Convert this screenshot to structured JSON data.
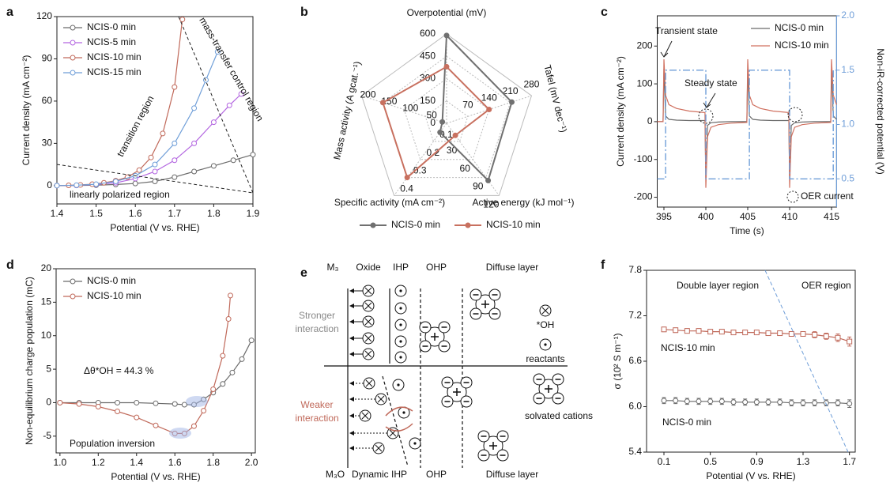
{
  "chart_data": [
    {
      "panel": "a",
      "type": "line",
      "xlabel": "Potential (V vs. RHE)",
      "ylabel": "Current density (mA cm⁻²)",
      "xlim": [
        1.4,
        1.9
      ],
      "ylim": [
        -13,
        120
      ],
      "xticks": [
        1.4,
        1.5,
        1.6,
        1.7,
        1.8,
        1.9
      ],
      "yticks": [
        0,
        30,
        60,
        90,
        120
      ],
      "legend": "upper left",
      "annotations": [
        "transition region",
        "mass-transfer control region",
        "linearly polarized region"
      ],
      "series": [
        {
          "name": "NCIS-0 min",
          "color": "#6b6b6b",
          "marker": "circle",
          "x": [
            1.4,
            1.45,
            1.5,
            1.55,
            1.6,
            1.65,
            1.7,
            1.75,
            1.8,
            1.85,
            1.9
          ],
          "values": [
            0,
            0.1,
            0.3,
            0.8,
            1.5,
            3,
            6,
            10,
            14,
            18,
            22
          ]
        },
        {
          "name": "NCIS-5 min",
          "color": "#b366e0",
          "marker": "circle",
          "x": [
            1.4,
            1.45,
            1.5,
            1.55,
            1.6,
            1.65,
            1.7,
            1.75,
            1.8,
            1.84,
            1.87
          ],
          "values": [
            0,
            0.2,
            0.8,
            2,
            5,
            10,
            18,
            30,
            45,
            57,
            65
          ]
        },
        {
          "name": "NCIS-10 min",
          "color": "#c0695a",
          "marker": "circle",
          "x": [
            1.4,
            1.43,
            1.46,
            1.49,
            1.52,
            1.55,
            1.58,
            1.61,
            1.64,
            1.67,
            1.7,
            1.72
          ],
          "values": [
            0,
            0.2,
            0.5,
            1,
            2,
            3.5,
            6,
            11,
            20,
            37,
            70,
            118
          ]
        },
        {
          "name": "NCIS-15 min",
          "color": "#6f9ed8",
          "marker": "circle",
          "x": [
            1.4,
            1.45,
            1.5,
            1.55,
            1.6,
            1.65,
            1.7,
            1.75,
            1.78,
            1.81
          ],
          "values": [
            0,
            0.3,
            1,
            3,
            7,
            15,
            30,
            55,
            75,
            95
          ]
        }
      ]
    },
    {
      "panel": "b",
      "type": "radar",
      "legend": "bottom",
      "axes": [
        {
          "label": "Overpotential (mV)",
          "range": [
            0,
            600
          ],
          "ticks": [
            0,
            150,
            300,
            450,
            600
          ]
        },
        {
          "label": "Tafel (mV dec⁻¹)",
          "range": [
            0,
            280
          ],
          "ticks": [
            70,
            140,
            210,
            280
          ]
        },
        {
          "label": "Active energy (kJ mol⁻¹)",
          "range": [
            0,
            120
          ],
          "ticks": [
            30,
            60,
            90,
            120
          ]
        },
        {
          "label": "Specific activity (mA cm⁻²)",
          "range": [
            0,
            0.4
          ],
          "ticks": [
            0.1,
            0.2,
            0.3,
            0.4
          ]
        },
        {
          "label": "Mass activity (A gcat.⁻¹)",
          "range": [
            0,
            200
          ],
          "ticks": [
            50,
            100,
            150,
            200
          ]
        }
      ],
      "series": [
        {
          "name": "NCIS-0 min",
          "color": "#707070",
          "values": [
            590,
            215,
            95,
            0.05,
            10
          ]
        },
        {
          "name": "NCIS-10 min",
          "color": "#c8705f",
          "values": [
            380,
            140,
            20,
            0.3,
            150
          ]
        }
      ]
    },
    {
      "panel": "c",
      "type": "line",
      "xlabel": "Time (s)",
      "ylabel": "Current density (mA cm⁻²)",
      "y2label": "Non-iR-corrected potential (V)",
      "xlim": [
        394.2,
        415.6
      ],
      "ylim": [
        -226,
        280
      ],
      "y2lim": [
        0.24,
        2.0
      ],
      "xticks": [
        395,
        400,
        405,
        410,
        415
      ],
      "yticks": [
        -200,
        -100,
        0,
        100,
        200
      ],
      "y2ticks": [
        0.5,
        {
          "value": 1,
          "label": "1.0"
        },
        1.5,
        {
          "value": 2,
          "label": "2.0"
        }
      ],
      "legend": "upper right",
      "annotations": [
        "Transient state",
        "Steady state",
        "OER current"
      ],
      "x": [
        394.2,
        394.9,
        395.0,
        395.2,
        395.6,
        396.5,
        398,
        399.9,
        400.0,
        400.2,
        400.6,
        401.5,
        403,
        404.9,
        405.0,
        405.2,
        405.6,
        406.5,
        408,
        409.9,
        410.0,
        410.2,
        410.6,
        411.5,
        413,
        414.9,
        415.0,
        415.2,
        415.6
      ],
      "series": [
        {
          "name": "NCIS-0 min",
          "color": "#6b6b6b",
          "values": [
            0,
            0,
            140,
            15,
            6,
            4,
            3,
            3,
            -150,
            -10,
            -3,
            -1,
            0,
            0,
            140,
            15,
            6,
            4,
            3,
            3,
            -150,
            -10,
            -3,
            -1,
            0,
            0,
            140,
            15,
            6
          ]
        },
        {
          "name": "NCIS-10 min",
          "color": "#d0705f",
          "values": [
            0,
            0,
            165,
            70,
            45,
            35,
            28,
            24,
            -175,
            -40,
            -15,
            -8,
            -4,
            -2,
            165,
            70,
            45,
            35,
            28,
            24,
            -175,
            -40,
            -15,
            -8,
            -4,
            -2,
            165,
            70,
            45
          ]
        },
        {
          "color": "#6f9ed8",
          "dash": "dashdot",
          "axis": "y2",
          "x": [
            394.2,
            395.2,
            395.2,
            400,
            400,
            405.2,
            405.2,
            410,
            410,
            415.2,
            415.2,
            415.6
          ],
          "values": [
            0.5,
            0.5,
            1.5,
            1.5,
            0.5,
            0.5,
            1.5,
            1.5,
            0.5,
            0.5,
            1.5,
            1.5
          ]
        }
      ]
    },
    {
      "panel": "d",
      "type": "line",
      "xlabel": "Potential (V vs. RHE)",
      "ylabel": "Non-equilibrium charge population (mC)",
      "xlim": [
        0.98,
        2.02
      ],
      "ylim": [
        -7.5,
        20
      ],
      "xticks": [
        {
          "value": 1,
          "label": "1.0"
        },
        1.2,
        1.4,
        1.6,
        1.8,
        {
          "value": 2,
          "label": "2.0"
        }
      ],
      "yticks": [
        -5,
        0,
        5,
        10,
        15,
        20
      ],
      "legend": "upper left",
      "annotations": [
        "Δθ*OH = 44.3 %",
        "Population inversion"
      ],
      "series": [
        {
          "name": "NCIS-0 min",
          "color": "#6b6b6b",
          "marker": "circle",
          "x": [
            1.0,
            1.1,
            1.2,
            1.3,
            1.4,
            1.5,
            1.6,
            1.65,
            1.7,
            1.75,
            1.8,
            1.85,
            1.9,
            1.95,
            2.0
          ],
          "values": [
            0,
            0,
            0,
            0,
            0,
            -0.1,
            -0.2,
            -0.3,
            -0.3,
            0.5,
            1.5,
            2.8,
            4.5,
            6.5,
            9.3
          ]
        },
        {
          "name": "NCIS-10 min",
          "color": "#c0695a",
          "marker": "circle",
          "x": [
            1.0,
            1.1,
            1.2,
            1.3,
            1.4,
            1.5,
            1.6,
            1.65,
            1.7,
            1.75,
            1.8,
            1.85,
            1.88,
            1.89
          ],
          "values": [
            0,
            -0.2,
            -0.6,
            -1.3,
            -2.2,
            -3.4,
            -4.6,
            -4.6,
            -3.5,
            -1.2,
            2,
            7,
            12.5,
            16
          ]
        }
      ]
    },
    {
      "panel": "f",
      "type": "errorbar",
      "xlabel": "Potential (V vs. RHE)",
      "ylabel": "σ (10² S m⁻¹)",
      "xlim": [
        -0.05,
        1.75
      ],
      "ylim": [
        5.4,
        7.8
      ],
      "xticks": [
        0.1,
        0.5,
        0.9,
        1.3,
        1.7
      ],
      "yticks": [
        5.4,
        {
          "value": 6,
          "label": "6.0"
        },
        6.6,
        7.2,
        7.8
      ],
      "annotations": [
        "Double layer region",
        "OER region",
        "NCIS-10 min",
        "NCIS-0 min"
      ],
      "x": [
        0.1,
        0.2,
        0.3,
        0.4,
        0.5,
        0.6,
        0.7,
        0.8,
        0.9,
        1.0,
        1.1,
        1.2,
        1.3,
        1.4,
        1.5,
        1.6,
        1.7
      ],
      "series": [
        {
          "color": "#c0695a",
          "marker": "square",
          "values": [
            7.02,
            7.01,
            7.0,
            7.0,
            6.99,
            6.99,
            6.98,
            6.98,
            6.98,
            6.97,
            6.97,
            6.96,
            6.96,
            6.95,
            6.93,
            6.91,
            6.86
          ],
          "errors": [
            0.03,
            0.03,
            0.03,
            0.03,
            0.03,
            0.03,
            0.03,
            0.03,
            0.03,
            0.03,
            0.03,
            0.03,
            0.03,
            0.04,
            0.04,
            0.05,
            0.06
          ]
        },
        {
          "color": "#6b6b6b",
          "marker": "circle",
          "values": [
            6.08,
            6.08,
            6.07,
            6.07,
            6.07,
            6.07,
            6.06,
            6.06,
            6.06,
            6.06,
            6.06,
            6.05,
            6.05,
            6.05,
            6.05,
            6.05,
            6.04
          ],
          "errors": [
            0.04,
            0.04,
            0.04,
            0.04,
            0.04,
            0.04,
            0.04,
            0.04,
            0.04,
            0.04,
            0.04,
            0.04,
            0.04,
            0.04,
            0.04,
            0.04,
            0.05
          ]
        }
      ]
    }
  ],
  "diagram": {
    "panel": "e",
    "top": {
      "metal": "M₃",
      "columns": [
        "Oxide",
        "IHP",
        "OHP",
        "Diffuse layer"
      ],
      "interaction": [
        "Stronger",
        "interaction"
      ]
    },
    "bottom": {
      "metal": "M₃O",
      "columns": [
        "Dynamic IHP",
        "OHP",
        "Diffuse layer"
      ],
      "interaction": [
        "Weaker",
        "interaction"
      ]
    },
    "legend": [
      "*OH",
      "reactants",
      "solvated cations"
    ]
  }
}
